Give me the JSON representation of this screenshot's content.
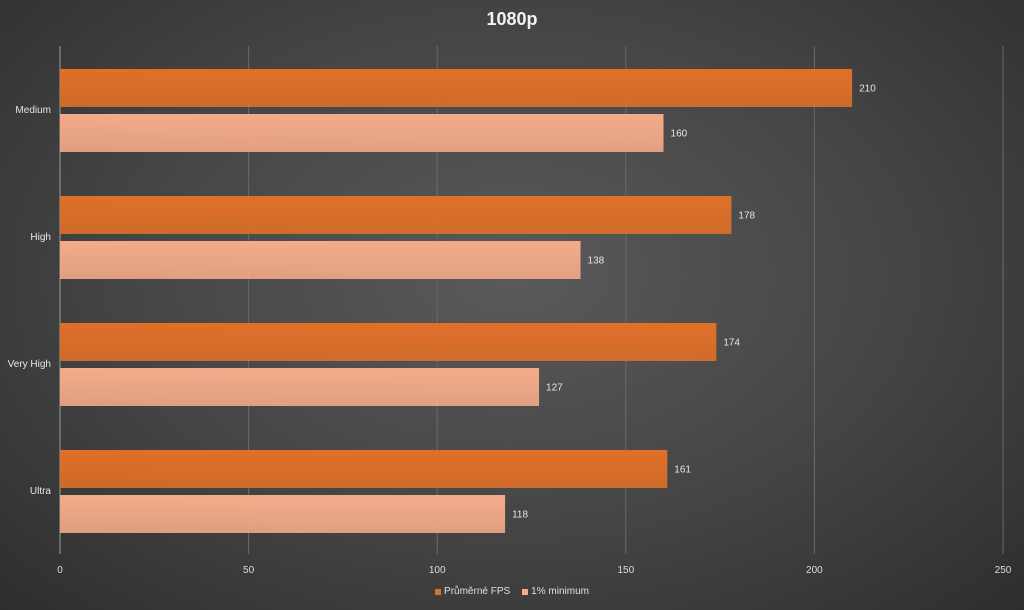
{
  "chart_data": {
    "type": "bar",
    "orientation": "horizontal",
    "title": "1080p",
    "categories": [
      "Medium",
      "High",
      "Very High",
      "Ultra"
    ],
    "series": [
      {
        "name": "Průměrné FPS",
        "values": [
          210,
          178,
          174,
          161
        ],
        "color": "#e07028"
      },
      {
        "name": "1% minimum",
        "values": [
          160,
          138,
          127,
          118
        ],
        "color": "#f5ab8a"
      }
    ],
    "xlim": [
      0,
      250
    ],
    "xticks": [
      0,
      50,
      100,
      150,
      200,
      250
    ],
    "xlabel": "",
    "ylabel": "",
    "grid": true,
    "data_labels": true,
    "legend_position": "bottom"
  }
}
